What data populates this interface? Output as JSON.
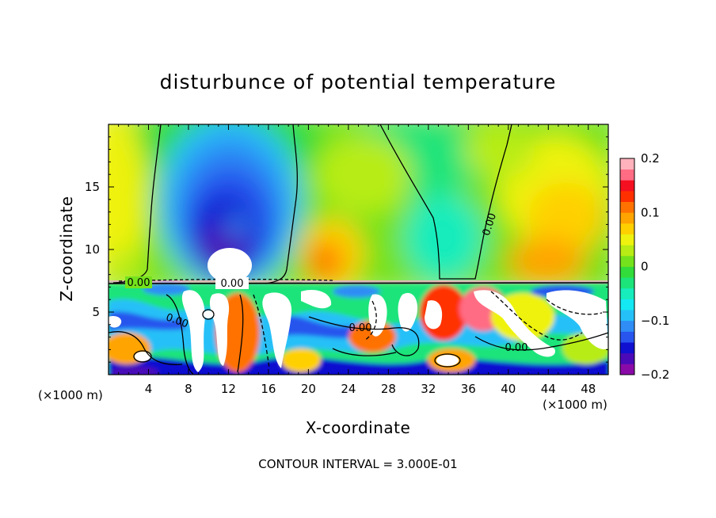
{
  "chart_data": {
    "type": "heatmap",
    "title": "disturbunce of potential temperature",
    "xlabel": "X-coordinate",
    "ylabel": "Z-coordinate",
    "x_unit": "(×1000 m)",
    "x_ticks": [
      4,
      8,
      12,
      16,
      20,
      24,
      28,
      32,
      36,
      40,
      44,
      48
    ],
    "y_ticks": [
      5,
      10,
      15
    ],
    "xlim": [
      0,
      50
    ],
    "ylim": [
      0,
      20
    ],
    "colorbar": {
      "min": -0.2,
      "max": 0.2,
      "tick_values": [
        0.2,
        0.1,
        0,
        -0.1,
        -0.2
      ],
      "tick_labels": [
        "0.2",
        "0.1",
        "0",
        "−0.1",
        "−0.2"
      ],
      "colors": [
        "#8a0aa8",
        "#4a0ab8",
        "#1010d0",
        "#2855ee",
        "#2f8df5",
        "#26c0f8",
        "#14e8f2",
        "#16ecbc",
        "#1de47a",
        "#32dc3a",
        "#74e21c",
        "#b8ec14",
        "#eef20e",
        "#ffd000",
        "#ffa400",
        "#ff7200",
        "#ff3000",
        "#f41020",
        "#ff6c84",
        "#ffb2bc"
      ]
    },
    "contour_labels": [
      "0.00",
      "0.00",
      "0.00",
      "0.00",
      "0.00",
      "0.00"
    ],
    "footer": "CONTOUR INTERVAL = 3.000E-01"
  }
}
